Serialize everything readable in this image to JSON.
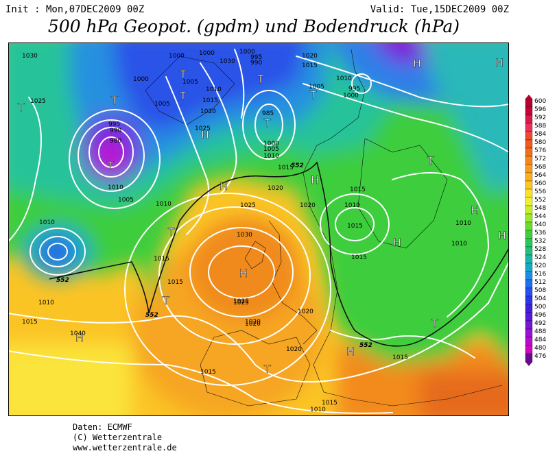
{
  "header": {
    "init_label": "Init : Mon,07DEC2009 00Z",
    "valid_label": "Valid: Tue,15DEC2009 00Z",
    "title": "500 hPa Geopot. (gpdm) und Bodendruck (hPa)"
  },
  "legend": {
    "values": [
      "600",
      "596",
      "592",
      "588",
      "584",
      "580",
      "576",
      "572",
      "568",
      "564",
      "560",
      "556",
      "552",
      "548",
      "544",
      "540",
      "536",
      "532",
      "528",
      "524",
      "520",
      "516",
      "512",
      "508",
      "504",
      "500",
      "496",
      "492",
      "488",
      "484",
      "480",
      "476"
    ],
    "colors": [
      "#b8002e",
      "#c80038",
      "#d81a4a",
      "#e8325a",
      "#ee4a30",
      "#f05a20",
      "#f46e18",
      "#f7861a",
      "#f99b1c",
      "#fbb01e",
      "#fcc622",
      "#fde02a",
      "#eef034",
      "#c8ee2e",
      "#9ee82c",
      "#6edc2c",
      "#3cd23c",
      "#28c85a",
      "#20c080",
      "#18b8a8",
      "#16a8c8",
      "#1c8ee0",
      "#2070ee",
      "#2452f0",
      "#2a36e8",
      "#3c22e0",
      "#5a18dc",
      "#7a14d8",
      "#9a10d4",
      "#b80ccc",
      "#ce08bc",
      "#6a0a8c"
    ]
  },
  "map": {
    "pressure_labels": [
      "1030",
      "1025",
      "1000",
      "1000",
      "1000",
      "995",
      "990",
      "1020",
      "1015",
      "1000",
      "1030",
      "1005",
      "1025",
      "995",
      "990",
      "980",
      "1005",
      "1010",
      "1015",
      "1020",
      "985",
      "1000",
      "1005",
      "1010",
      "1020",
      "1025",
      "1030",
      "1025",
      "1020",
      "1015",
      "1010",
      "1005",
      "995",
      "1000",
      "1010",
      "1005",
      "1010",
      "1015",
      "1010",
      "1015",
      "1020",
      "1010",
      "1015",
      "1010",
      "1015",
      "1015",
      "1015",
      "1010",
      "1010",
      "1025",
      "1020",
      "1020",
      "1020",
      "1040",
      "1015",
      "1015",
      "1010",
      "1015"
    ],
    "geopotential_labels": [
      "552",
      "552",
      "552",
      "552"
    ],
    "high_symbol": "H",
    "low_symbol": "T",
    "highs": 11,
    "lows": 13
  },
  "credits": {
    "line1": "Daten: ECMWF",
    "line2": "(C) Wetterzentrale",
    "line3": "www.wetterzentrale.de"
  }
}
